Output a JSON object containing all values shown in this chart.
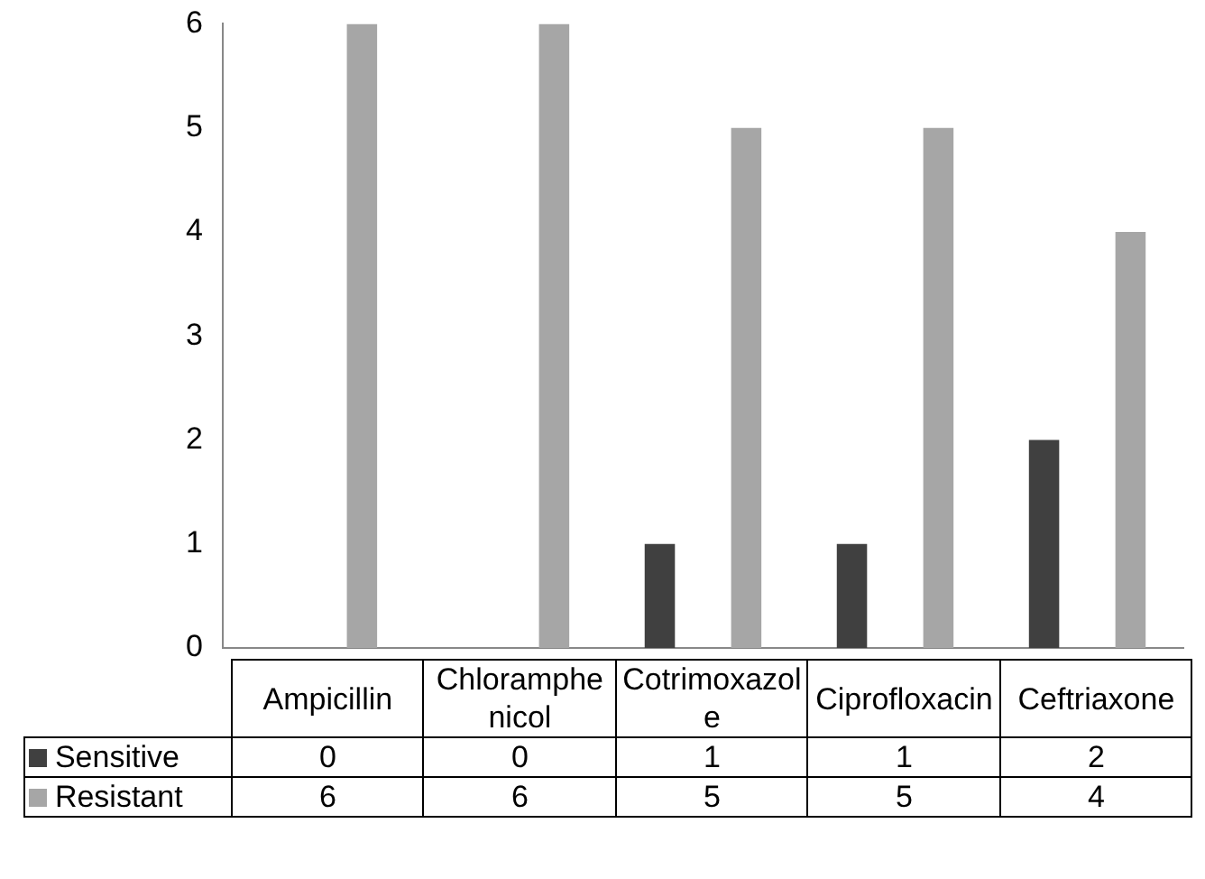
{
  "chart_data": {
    "type": "bar",
    "categories": [
      "Ampicillin",
      "Chloramphenicol",
      "Cotrimoxazole",
      "Ciprofloxacin",
      "Ceftriaxone"
    ],
    "series": [
      {
        "name": "Sensitive",
        "color": "#404040",
        "values": [
          0,
          0,
          1,
          1,
          2
        ]
      },
      {
        "name": "Resistant",
        "color": "#a6a6a6",
        "values": [
          6,
          6,
          5,
          5,
          4
        ]
      }
    ],
    "ylim": [
      0,
      6
    ],
    "yticks": [
      0,
      1,
      2,
      3,
      4,
      5,
      6
    ],
    "grid": false,
    "legend": "bottom",
    "data_labels": true
  }
}
